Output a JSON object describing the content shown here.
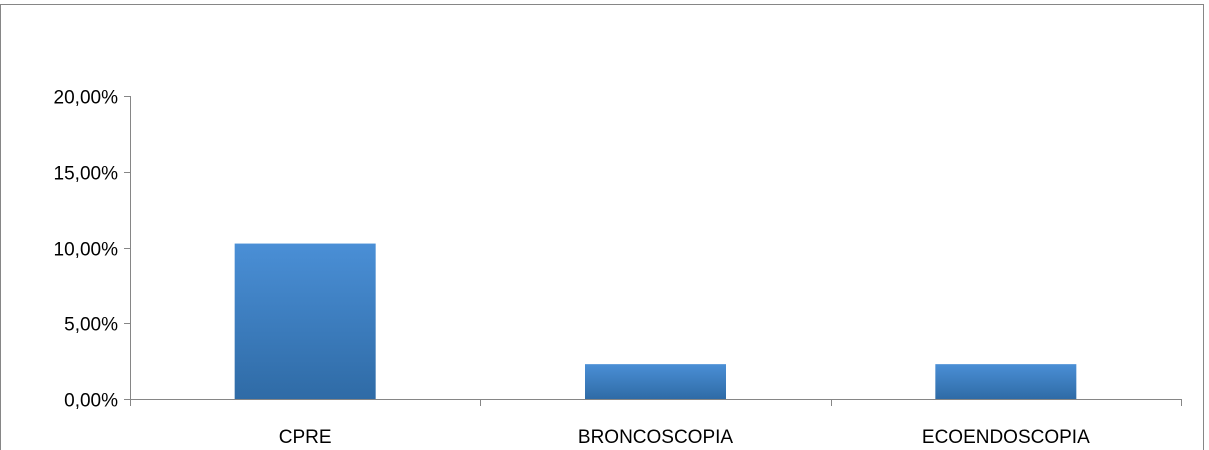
{
  "chart_data": {
    "type": "bar",
    "title": "",
    "xlabel": "",
    "ylabel": "",
    "categories": [
      "CPRE",
      "BRONCOSCOPIA",
      "ECOENDOSCOPIA"
    ],
    "values": [
      10.26,
      2.3,
      2.3
    ],
    "ylim": [
      0,
      20
    ],
    "yticks": [
      0,
      5,
      10,
      15,
      20
    ],
    "ytick_labels": [
      "0,00%",
      "5,00%",
      "10,00%",
      "15,00%",
      "20,00%"
    ],
    "grid": false,
    "legend": "none",
    "bar_color_top": "#4a8fd6",
    "bar_color_bottom": "#2f6ba6",
    "axis_color": "#868686",
    "frame_color": "#868686"
  }
}
